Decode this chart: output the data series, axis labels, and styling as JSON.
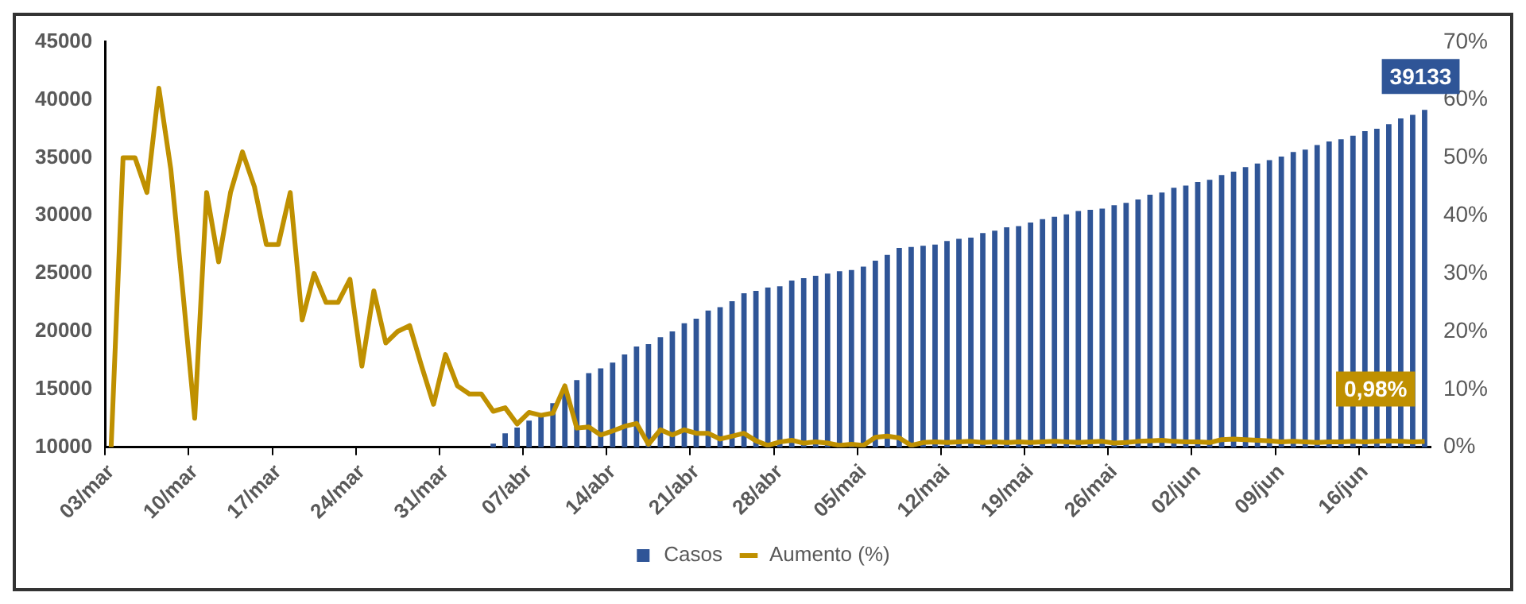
{
  "chart_data": {
    "type": "bar",
    "categories": [
      "03/mar",
      null,
      null,
      null,
      null,
      null,
      null,
      "10/mar",
      null,
      null,
      null,
      null,
      null,
      null,
      "17/mar",
      null,
      null,
      null,
      null,
      null,
      null,
      "24/mar",
      null,
      null,
      null,
      null,
      null,
      null,
      "31/mar",
      null,
      null,
      null,
      null,
      null,
      null,
      "07/abr",
      null,
      null,
      null,
      null,
      null,
      null,
      "14/abr",
      null,
      null,
      null,
      null,
      null,
      null,
      "21/abr",
      null,
      null,
      null,
      null,
      null,
      null,
      "28/abr",
      null,
      null,
      null,
      null,
      null,
      null,
      "05/mai",
      null,
      null,
      null,
      null,
      null,
      null,
      "12/mai",
      null,
      null,
      null,
      null,
      null,
      null,
      "19/mai",
      null,
      null,
      null,
      null,
      null,
      null,
      "26/mai",
      null,
      null,
      null,
      null,
      null,
      null,
      "02/jun",
      null,
      null,
      null,
      null,
      null,
      null,
      "09/jun",
      null,
      null,
      null,
      null,
      null,
      null,
      "16/jun",
      null,
      null,
      null,
      null,
      null
    ],
    "series": [
      {
        "name": "Casos",
        "color": "#2f5597",
        "values": [
          null,
          null,
          null,
          null,
          null,
          null,
          null,
          null,
          null,
          null,
          null,
          null,
          null,
          null,
          null,
          null,
          null,
          null,
          null,
          null,
          null,
          null,
          null,
          null,
          null,
          null,
          null,
          null,
          null,
          null,
          null,
          null,
          10300,
          11200,
          11700,
          12300,
          12600,
          13800,
          14700,
          15800,
          16400,
          16800,
          17300,
          18000,
          18700,
          18900,
          19500,
          20000,
          20700,
          21100,
          21800,
          22100,
          22600,
          23300,
          23500,
          23800,
          23900,
          24400,
          24600,
          24800,
          25000,
          25200,
          25300,
          25600,
          26100,
          26600,
          27200,
          27300,
          27400,
          27500,
          27800,
          28000,
          28100,
          28500,
          28700,
          29000,
          29100,
          29400,
          29700,
          29900,
          30100,
          30400,
          30500,
          30600,
          30900,
          31100,
          31400,
          31800,
          32000,
          32400,
          32600,
          32900,
          33100,
          33500,
          33800,
          34200,
          34500,
          34800,
          35100,
          35500,
          35700,
          36100,
          36400,
          36600,
          36900,
          37300,
          37500,
          37900,
          38400,
          38700,
          39133
        ],
        "value_labels": [
          null,
          null,
          null,
          null,
          null,
          null,
          null,
          null,
          null,
          null,
          null,
          null,
          null,
          null,
          null,
          null,
          null,
          null,
          null,
          null,
          null,
          null,
          null,
          null,
          null,
          null,
          null,
          null,
          null,
          null,
          null,
          null,
          null,
          null,
          null,
          null,
          null,
          null,
          null,
          null,
          null,
          null,
          null,
          null,
          null,
          null,
          null,
          null,
          null,
          null,
          null,
          null,
          null,
          null,
          null,
          null,
          null,
          null,
          null,
          null,
          null,
          null,
          null,
          null,
          null,
          null,
          null,
          null,
          null,
          null,
          null,
          null,
          null,
          null,
          null,
          null,
          null,
          null,
          null,
          null,
          null,
          null,
          null,
          null,
          null,
          null,
          null,
          null,
          null,
          null,
          null,
          null,
          null,
          null,
          null,
          null,
          null,
          null,
          null,
          null,
          null,
          null,
          null,
          null,
          null,
          null,
          null,
          null,
          null,
          null,
          "39133"
        ]
      },
      {
        "name": "Aumento (%)",
        "type": "line",
        "axis": "y2",
        "color": "#bf9000",
        "values": [
          0,
          50,
          50,
          44,
          62,
          48,
          27,
          5,
          44,
          32,
          44,
          51,
          45,
          35,
          35,
          44,
          22,
          30,
          25,
          25,
          29,
          14,
          27,
          18,
          20,
          21,
          14,
          7.4,
          16,
          10.6,
          9.2,
          9.2,
          6.2,
          6.8,
          4.0,
          6.0,
          5.5,
          5.9,
          10.6,
          3.3,
          3.5,
          2.1,
          2.8,
          3.6,
          4.1,
          0.5,
          3.0,
          2.1,
          3.0,
          2.4,
          2.4,
          1.4,
          1.9,
          2.4,
          1.1,
          0.3,
          0.9,
          1.2,
          0.7,
          0.9,
          0.7,
          0.3,
          0.5,
          0.3,
          1.7,
          1.9,
          1.6,
          0.3,
          0.8,
          0.9,
          0.8,
          0.9,
          1.0,
          0.8,
          0.9,
          0.8,
          0.9,
          0.8,
          0.9,
          1.0,
          0.9,
          0.8,
          0.9,
          1.0,
          0.7,
          0.8,
          1.0,
          1.1,
          1.2,
          1.0,
          0.9,
          0.9,
          0.8,
          1.3,
          1.4,
          1.3,
          1.2,
          1.1,
          0.9,
          1.0,
          0.9,
          0.8,
          0.9,
          0.9,
          1.0,
          0.9,
          1.0,
          1.1,
          1.0,
          0.9,
          0.98
        ],
        "value_labels": [
          null,
          null,
          null,
          null,
          null,
          null,
          null,
          null,
          null,
          null,
          null,
          null,
          null,
          null,
          null,
          null,
          null,
          null,
          null,
          null,
          null,
          null,
          null,
          null,
          null,
          null,
          null,
          null,
          null,
          null,
          null,
          null,
          null,
          null,
          null,
          null,
          null,
          null,
          null,
          null,
          null,
          null,
          null,
          null,
          null,
          null,
          null,
          null,
          null,
          null,
          null,
          null,
          null,
          null,
          null,
          null,
          null,
          null,
          null,
          null,
          null,
          null,
          null,
          null,
          null,
          null,
          null,
          null,
          null,
          null,
          null,
          null,
          null,
          null,
          null,
          null,
          null,
          null,
          null,
          null,
          null,
          null,
          null,
          null,
          null,
          null,
          null,
          null,
          null,
          null,
          null,
          null,
          null,
          null,
          null,
          null,
          null,
          null,
          null,
          null,
          null,
          null,
          null,
          null,
          null,
          null,
          null,
          null,
          null,
          null,
          "0,98%"
        ]
      }
    ],
    "ylim": [
      10000,
      45000
    ],
    "yticks": [
      10000,
      15000,
      20000,
      25000,
      30000,
      35000,
      40000,
      45000
    ],
    "y2lim": [
      0,
      70
    ],
    "y2ticks": [
      {
        "value": 0,
        "label": "0%"
      },
      {
        "value": 10,
        "label": "10%"
      },
      {
        "value": 20,
        "label": "20%"
      },
      {
        "value": 30,
        "label": "30%"
      },
      {
        "value": 40,
        "label": "40%"
      },
      {
        "value": 50,
        "label": "50%"
      },
      {
        "value": 60,
        "label": "60%"
      },
      {
        "value": 70,
        "label": "70%"
      }
    ],
    "grid": false,
    "legend": "bottom"
  }
}
